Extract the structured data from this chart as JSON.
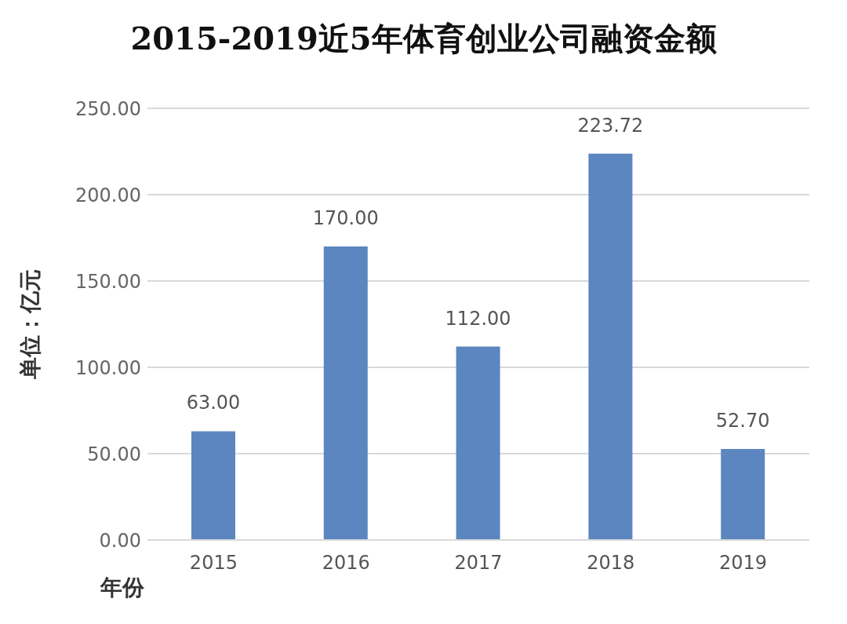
{
  "chart_data": {
    "type": "bar",
    "title": "2015-2019近5年体育创业公司融资金额",
    "xlabel": "年份",
    "ylabel": "单位：亿元",
    "categories": [
      "2015",
      "2016",
      "2017",
      "2018",
      "2019"
    ],
    "values": [
      63,
      170,
      112,
      223.72,
      52.7
    ],
    "value_labels": [
      "63.00",
      "170.00",
      "112.00",
      "223.72",
      "52.70"
    ],
    "color": "#5b86c0",
    "ylim": [
      0,
      250
    ],
    "yticks": [
      {
        "value": 0,
        "label": "0.00"
      },
      {
        "value": 50,
        "label": "50.00"
      },
      {
        "value": 100,
        "label": "100.00"
      },
      {
        "value": 150,
        "label": "150.00"
      },
      {
        "value": 200,
        "label": "200.00"
      },
      {
        "value": 250,
        "label": "250.00"
      }
    ],
    "grid": "y"
  }
}
